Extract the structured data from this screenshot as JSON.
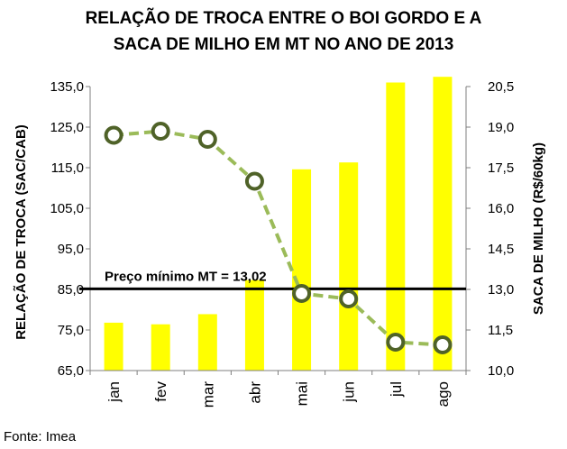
{
  "title_lines": [
    "RELAÇÃO DE TROCA ENTRE O BOI GORDO E A",
    "SACA DE MILHO EM MT NO ANO DE 2013"
  ],
  "source": "Fonte: Imea",
  "chart_data": {
    "type": "bar",
    "categories": [
      "jan",
      "fev",
      "mar",
      "abr",
      "mai",
      "jun",
      "jul",
      "ago"
    ],
    "bar_values": [
      76.8,
      76.4,
      78.9,
      87.3,
      114.6,
      116.3,
      136.0,
      137.4
    ],
    "line_values": [
      18.7,
      18.85,
      18.55,
      17.0,
      12.85,
      12.65,
      11.05,
      10.95
    ],
    "ylabel_left": "RELAÇÃO DE TROCA (SAC/CAB)",
    "ylabel_right": "SACA DE MILHO (R$/60kg)",
    "ylim_left": [
      65,
      135
    ],
    "yticks_left": [
      "65,0",
      "75,0",
      "85,0",
      "95,0",
      "105,0",
      "115,0",
      "125,0",
      "135,0"
    ],
    "ylim_right": [
      10,
      20.5
    ],
    "yticks_right": [
      "10,0",
      "11,5",
      "13,0",
      "14,5",
      "16,0",
      "17,5",
      "19,0",
      "20,5"
    ],
    "reference_line": {
      "value": 13.02,
      "label": "Preço mínimo MT = 13,02"
    },
    "colors": {
      "bars": "#ffff00",
      "line": "#9bbb59",
      "marker_edge": "#4f6228",
      "reference": "#000000"
    },
    "grid": false,
    "legend": "none"
  }
}
